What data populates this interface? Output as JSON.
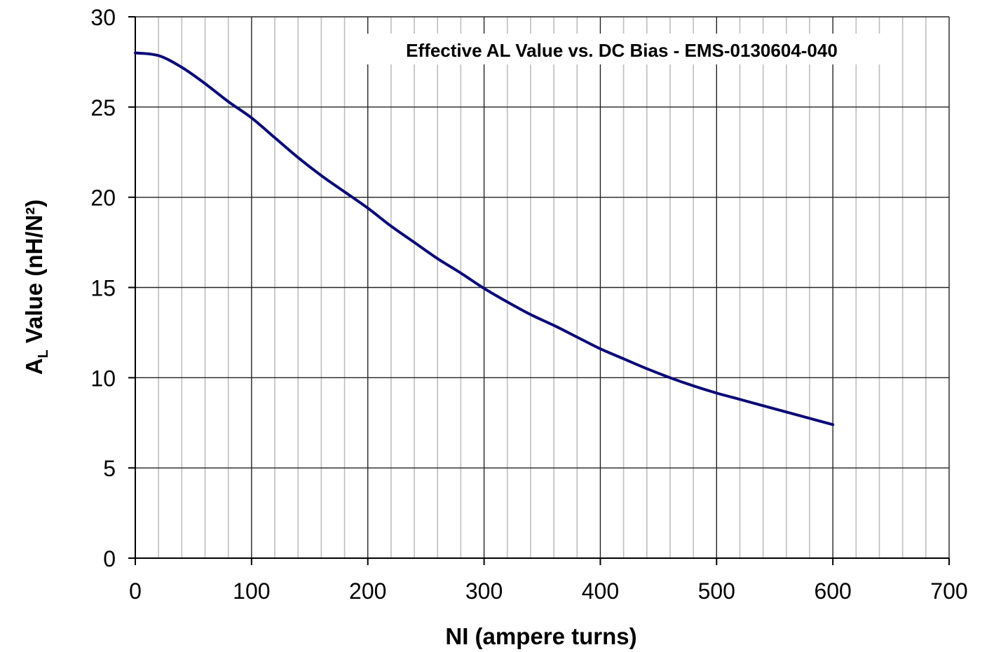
{
  "chart_data": {
    "type": "line",
    "title": "Effective AL Value vs. DC Bias - EMS-0130604-040",
    "xlabel": "NI (ampere turns)",
    "ylabel_main": "A",
    "ylabel_sub": "L",
    "ylabel_rest": " Value (nH/N²)",
    "xlim": [
      0,
      700
    ],
    "ylim": [
      0,
      30
    ],
    "x_ticks": [
      0,
      100,
      200,
      300,
      400,
      500,
      600,
      700
    ],
    "x_tick_labels": [
      "0",
      "100",
      "200",
      "300",
      "400",
      "500",
      "600",
      "700"
    ],
    "y_ticks": [
      0,
      5,
      10,
      15,
      20,
      25,
      30
    ],
    "y_tick_labels": [
      "0",
      "5",
      "10",
      "15",
      "20",
      "25",
      "30"
    ],
    "x_minor_step": 20,
    "grid": true,
    "legend": "none",
    "line_color": "#0a0a78",
    "series": [
      {
        "x": [
          0,
          20,
          40,
          60,
          80,
          100,
          120,
          140,
          160,
          180,
          200,
          220,
          240,
          260,
          280,
          300,
          320,
          340,
          360,
          380,
          400,
          420,
          440,
          460,
          480,
          500,
          520,
          540,
          560,
          580,
          600
        ],
        "y": [
          28.0,
          27.85,
          27.2,
          26.3,
          25.3,
          24.4,
          23.3,
          22.2,
          21.2,
          20.3,
          19.4,
          18.4,
          17.5,
          16.6,
          15.8,
          14.95,
          14.2,
          13.5,
          12.9,
          12.25,
          11.6,
          11.05,
          10.5,
          10.0,
          9.55,
          9.15,
          8.8,
          8.45,
          8.1,
          7.75,
          7.4
        ]
      }
    ]
  }
}
